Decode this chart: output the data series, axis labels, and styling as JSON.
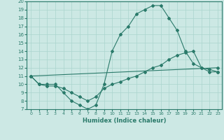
{
  "xlabel": "Humidex (Indice chaleur)",
  "bg_color": "#cce8e4",
  "line_color": "#2a7a6a",
  "grid_color": "#aad4ce",
  "xlim": [
    -0.5,
    23.5
  ],
  "ylim": [
    7,
    20
  ],
  "xticks": [
    0,
    1,
    2,
    3,
    4,
    5,
    6,
    7,
    8,
    9,
    10,
    11,
    12,
    13,
    14,
    15,
    16,
    17,
    18,
    19,
    20,
    21,
    22,
    23
  ],
  "yticks": [
    7,
    8,
    9,
    10,
    11,
    12,
    13,
    14,
    15,
    16,
    17,
    18,
    19,
    20
  ],
  "line1_x": [
    0,
    1,
    2,
    3,
    4,
    5,
    6,
    7,
    8,
    9,
    10,
    11,
    12,
    13,
    14,
    15,
    16,
    17,
    18,
    19,
    20,
    21,
    22,
    23
  ],
  "line1_y": [
    11,
    10,
    10,
    10,
    9,
    8,
    7.5,
    7,
    7.5,
    10,
    14,
    16,
    17,
    18.5,
    19,
    19.5,
    19.5,
    18,
    16.5,
    14,
    12.5,
    12,
    11.5,
    11.5
  ],
  "line2_x": [
    0,
    1,
    2,
    3,
    4,
    5,
    6,
    7,
    8,
    9,
    10,
    11,
    12,
    13,
    14,
    15,
    16,
    17,
    18,
    19,
    20,
    21,
    22,
    23
  ],
  "line2_y": [
    11,
    10,
    9.8,
    9.8,
    9.5,
    9.0,
    8.5,
    8.0,
    8.5,
    9.5,
    10,
    10.3,
    10.7,
    11.0,
    11.5,
    12.0,
    12.3,
    13.0,
    13.5,
    13.8,
    14.0,
    12.0,
    11.8,
    11.5
  ],
  "line3_x": [
    0,
    23
  ],
  "line3_y": [
    11,
    12
  ],
  "marker": "D",
  "markersize": 2.0,
  "linewidth": 0.8
}
